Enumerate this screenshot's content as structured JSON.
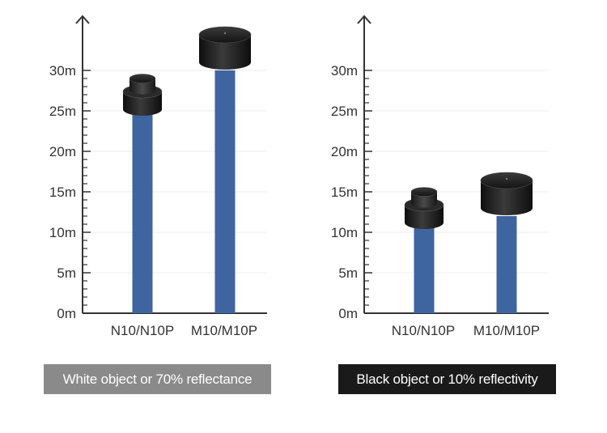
{
  "chart_data": [
    {
      "type": "bar",
      "categories": [
        "N10/N10P",
        "M10/M10P"
      ],
      "values": [
        25,
        30
      ],
      "ylim": [
        0,
        30
      ],
      "y_ticks": [
        "0m",
        "5m",
        "10m",
        "15m",
        "20m",
        "25m",
        "30m"
      ],
      "caption": "White object or 70% reflectance",
      "bar_color": "#3f65a0"
    },
    {
      "type": "bar",
      "categories": [
        "N10/N10P",
        "M10/M10P"
      ],
      "values": [
        11,
        12
      ],
      "ylim": [
        0,
        30
      ],
      "y_ticks": [
        "0m",
        "5m",
        "10m",
        "15m",
        "20m",
        "25m",
        "30m"
      ],
      "caption": "Black object or 10% reflectivity",
      "bar_color": "#3f65a0"
    }
  ],
  "captions": {
    "left": "White object or 70% reflectance",
    "right": "Black object or 10% reflectivity"
  },
  "colors": {
    "bar": "#3f65a0",
    "axis": "#333333",
    "grid": "#ececec",
    "caption_left_bg": "#8a8a8a",
    "caption_right_bg": "#1a1a1a"
  },
  "icons": {
    "small_sensor": "lidar-sensor-n10-icon",
    "large_sensor": "lidar-sensor-m10-icon"
  }
}
